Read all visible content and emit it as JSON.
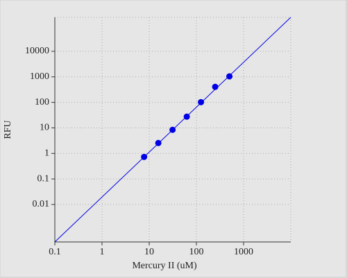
{
  "chart_data": {
    "type": "scatter",
    "x_label": "Mercury II (uM)",
    "y_label": "RFU",
    "xscale": "log",
    "yscale": "log",
    "grid": true,
    "xlim": [
      0.1,
      10000
    ],
    "ylim": [
      0.00034,
      214000
    ],
    "xticks": [
      0.1,
      1,
      10,
      100,
      1000
    ],
    "yticks": [
      0.01,
      0.1,
      1,
      10,
      100,
      1000,
      10000
    ],
    "points": {
      "color": "#0000e6",
      "x": [
        7.8,
        15.6,
        31.25,
        62.5,
        125,
        250,
        500
      ],
      "values": [
        0.73,
        2.55,
        8.4,
        27.5,
        102,
        405,
        1040
      ]
    },
    "fit_line": {
      "color": "#0000e6",
      "x": [
        0.1,
        10000
      ],
      "values": [
        0.00034,
        214000
      ]
    }
  }
}
